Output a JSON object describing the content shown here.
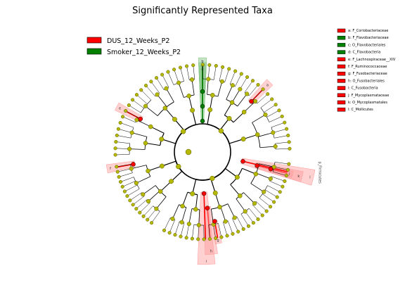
{
  "title": "Significantly Represented Taxa",
  "legend": [
    {
      "label": "DUS_12_Weeks_P2",
      "color": "#ff0000"
    },
    {
      "label": "Smoker_12_Weeks_P2",
      "color": "#008000"
    }
  ],
  "key": [
    {
      "text": "a: F_Coriobacteriaceae",
      "group": "DUS_12_Weeks_P2"
    },
    {
      "text": "b: F_Flavobacteriaceae",
      "group": "Smoker_12_Weeks_P2"
    },
    {
      "text": "c: O_Flavobacteriales",
      "group": "Smoker_12_Weeks_P2"
    },
    {
      "text": "d: C_Flavobacteria",
      "group": "Smoker_12_Weeks_P2"
    },
    {
      "text": "e: F_Lachnospiraceae__XIV",
      "group": "DUS_12_Weeks_P2"
    },
    {
      "text": "f: F_Ruminococcaceae",
      "group": "DUS_12_Weeks_P2"
    },
    {
      "text": "g: F_Fusobacteriaceae",
      "group": "DUS_12_Weeks_P2"
    },
    {
      "text": "h: O_Fusobacteriales",
      "group": "DUS_12_Weeks_P2"
    },
    {
      "text": "i: C_Fusobacteria",
      "group": "DUS_12_Weeks_P2"
    },
    {
      "text": "j: F_Mycoplasmataceae",
      "group": "DUS_12_Weeks_P2"
    },
    {
      "text": "k: O_Mycoplasmatales",
      "group": "DUS_12_Weeks_P2"
    },
    {
      "text": "l: C_Mollicutes",
      "group": "DUS_12_Weeks_P2"
    }
  ],
  "highlights": [
    {
      "letter": "d",
      "group": "Smoker_12_Weeks_P2"
    },
    {
      "letter": "c",
      "group": "Smoker_12_Weeks_P2"
    },
    {
      "letter": "b",
      "group": "Smoker_12_Weeks_P2"
    },
    {
      "letter": "a",
      "group": "DUS_12_Weeks_P2"
    },
    {
      "letter": "e",
      "group": "DUS_12_Weeks_P2"
    },
    {
      "letter": "f",
      "group": "DUS_12_Weeks_P2"
    },
    {
      "letter": "g",
      "group": "DUS_12_Weeks_P2"
    },
    {
      "letter": "h",
      "group": "DUS_12_Weeks_P2"
    },
    {
      "letter": "i",
      "group": "DUS_12_Weeks_P2"
    },
    {
      "letter": "j",
      "group": "DUS_12_Weeks_P2"
    },
    {
      "letter": "k",
      "group": "DUS_12_Weeks_P2"
    },
    {
      "letter": "l",
      "group": "DUS_12_Weeks_P2"
    }
  ],
  "side_label": "p_Firmicutes",
  "colors": {
    "node": "#b5b800",
    "node_stroke": "#5a5a00",
    "dus": "#ff0000",
    "smoker": "#008000",
    "dus_shade": "#ff9999",
    "smoker_shade": "#7fc07f"
  }
}
